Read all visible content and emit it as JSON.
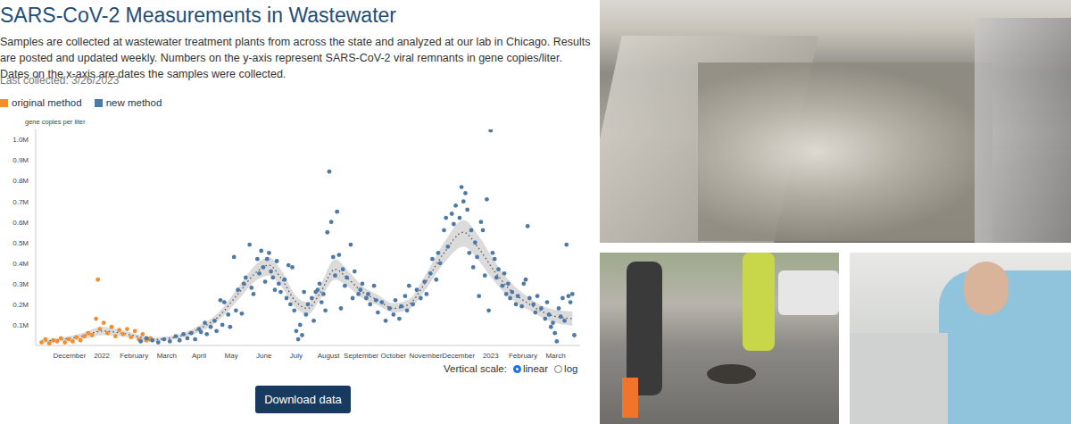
{
  "header": {
    "title": "SARS-CoV-2 Measurements in Wastewater",
    "description": "Samples are collected at wastewater treatment plants from across the state and analyzed at our lab in Chicago. Results are posted and updated weekly. Numbers on the y-axis represent SARS-CoV-2 viral remnants in gene copies/liter. Dates on the x-axis are dates the samples were collected.",
    "last_collected": "Last collected: 3/26/2023"
  },
  "controls": {
    "scale_label": "Vertical scale:",
    "scale_options": [
      "linear",
      "log"
    ],
    "selected": "linear",
    "button": "Download data"
  },
  "chart_data": {
    "type": "scatter",
    "y_label": "gene copies per liter",
    "grid": false,
    "legend": "top left",
    "xlim": [
      2021.83,
      2023.23
    ],
    "xticks": [
      {
        "value": 2021.917,
        "label": "December"
      },
      2022,
      {
        "value": 2022.083,
        "label": "February"
      },
      {
        "value": 2022.167,
        "label": "March"
      },
      {
        "value": 2022.25,
        "label": "April"
      },
      {
        "value": 2022.333,
        "label": "May"
      },
      {
        "value": 2022.417,
        "label": "June"
      },
      {
        "value": 2022.5,
        "label": "July"
      },
      {
        "value": 2022.583,
        "label": "August"
      },
      {
        "value": 2022.667,
        "label": "September"
      },
      {
        "value": 2022.75,
        "label": "October"
      },
      {
        "value": 2022.833,
        "label": "November"
      },
      {
        "value": 2022.917,
        "label": "December"
      },
      2023,
      {
        "value": 2023.083,
        "label": "February"
      },
      {
        "value": 2023.167,
        "label": "March"
      }
    ],
    "ylim": [
      0,
      1050000
    ],
    "yticks": [
      {
        "value": 100000,
        "label": "0.1M"
      },
      {
        "value": 200000,
        "label": "0.2M"
      },
      {
        "value": 300000,
        "label": "0.3M"
      },
      {
        "value": 400000,
        "label": "0.4M"
      },
      {
        "value": 500000,
        "label": "0.5M"
      },
      {
        "value": 600000,
        "label": "0.6M"
      },
      {
        "value": 700000,
        "label": "0.7M"
      },
      {
        "value": 800000,
        "label": "0.8M"
      },
      {
        "value": 900000,
        "label": "0.9M"
      },
      {
        "value": 1000000,
        "label": "1.0M"
      }
    ],
    "series": [
      {
        "type": "line",
        "line_style": "dotted",
        "color": "#555555",
        "x": [
          2021.845,
          2021.9,
          2021.95,
          2022.0,
          2022.05,
          2022.1,
          2022.125
        ],
        "values": [
          20000,
          30000,
          45000,
          70000,
          60000,
          40000,
          30000
        ],
        "lower": [
          10000,
          20000,
          30000,
          50000,
          45000,
          30000,
          20000
        ],
        "upper": [
          30000,
          40000,
          60000,
          90000,
          75000,
          50000,
          40000
        ]
      },
      {
        "type": "line",
        "line_style": "dotted",
        "color": "#555555",
        "x": [
          2022.1,
          2022.15,
          2022.2,
          2022.25,
          2022.3,
          2022.35,
          2022.4,
          2022.43,
          2022.46,
          2022.5,
          2022.53,
          2022.56,
          2022.6,
          2022.63,
          2022.67,
          2022.71,
          2022.75,
          2022.79,
          2022.83,
          2022.88,
          2022.93,
          2022.97,
          2023.01,
          2023.05,
          2023.1,
          2023.15,
          2023.21
        ],
        "values": [
          25000,
          30000,
          45000,
          80000,
          140000,
          250000,
          360000,
          390000,
          330000,
          210000,
          180000,
          250000,
          370000,
          330000,
          260000,
          220000,
          180000,
          200000,
          300000,
          450000,
          550000,
          470000,
          360000,
          270000,
          200000,
          150000,
          130000
        ],
        "lower": [
          15000,
          20000,
          35000,
          65000,
          120000,
          220000,
          320000,
          340000,
          290000,
          180000,
          150000,
          220000,
          320000,
          290000,
          230000,
          195000,
          160000,
          175000,
          265000,
          400000,
          480000,
          410000,
          310000,
          230000,
          170000,
          120000,
          95000
        ],
        "upper": [
          35000,
          40000,
          55000,
          95000,
          160000,
          280000,
          400000,
          430000,
          370000,
          240000,
          210000,
          285000,
          420000,
          370000,
          290000,
          245000,
          205000,
          225000,
          335000,
          500000,
          610000,
          530000,
          410000,
          310000,
          230000,
          180000,
          165000
        ]
      },
      {
        "name": "original method",
        "type": "scatter",
        "marker": "square",
        "color": "#f28e2b",
        "x": [
          2021.845,
          2021.855,
          2021.865,
          2021.875,
          2021.885,
          2021.895,
          2021.905,
          2021.915,
          2021.925,
          2021.935,
          2021.945,
          2021.955,
          2021.965,
          2021.975,
          2021.985,
          2021.99,
          2021.995,
          2022.005,
          2022.015,
          2022.025,
          2022.035,
          2022.045,
          2022.055,
          2022.065,
          2022.075,
          2022.085,
          2022.095,
          2022.105,
          2022.115,
          2022.125
        ],
        "values": [
          15000,
          30000,
          10000,
          25000,
          20000,
          35000,
          15000,
          30000,
          20000,
          40000,
          25000,
          45000,
          60000,
          50000,
          130000,
          320000,
          80000,
          110000,
          60000,
          90000,
          45000,
          75000,
          55000,
          80000,
          40000,
          70000,
          30000,
          55000,
          25000,
          35000
        ]
      },
      {
        "name": "new method",
        "type": "scatter",
        "marker": "square",
        "color": "#4e79a7",
        "x": [
          2022.1,
          2022.115,
          2022.13,
          2022.145,
          2022.16,
          2022.175,
          2022.19,
          2022.2,
          2022.21,
          2022.22,
          2022.23,
          2022.24,
          2022.25,
          2022.255,
          2022.265,
          2022.27,
          2022.28,
          2022.29,
          2022.295,
          2022.305,
          2022.31,
          2022.315,
          2022.325,
          2022.33,
          2022.34,
          2022.345,
          2022.35,
          2022.36,
          2022.365,
          2022.37,
          2022.38,
          2022.385,
          2022.39,
          2022.4,
          2022.405,
          2022.41,
          2022.415,
          2022.42,
          2022.425,
          2022.43,
          2022.435,
          2022.44,
          2022.445,
          2022.45,
          2022.455,
          2022.46,
          2022.47,
          2022.475,
          2022.48,
          2022.485,
          2022.49,
          2022.495,
          2022.5,
          2022.505,
          2022.51,
          2022.515,
          2022.52,
          2022.525,
          2022.53,
          2022.54,
          2022.545,
          2022.55,
          2022.555,
          2022.56,
          2022.565,
          2022.57,
          2022.575,
          2022.58,
          2022.585,
          2022.59,
          2022.595,
          2022.6,
          2022.605,
          2022.61,
          2022.615,
          2022.62,
          2022.625,
          2022.63,
          2022.64,
          2022.645,
          2022.65,
          2022.66,
          2022.665,
          2022.67,
          2022.68,
          2022.685,
          2022.69,
          2022.7,
          2022.705,
          2022.71,
          2022.72,
          2022.73,
          2022.74,
          2022.75,
          2022.755,
          2022.765,
          2022.77,
          2022.78,
          2022.785,
          2022.79,
          2022.8,
          2022.81,
          2022.82,
          2022.83,
          2022.835,
          2022.845,
          2022.85,
          2022.86,
          2022.865,
          2022.87,
          2022.88,
          2022.885,
          2022.89,
          2022.9,
          2022.905,
          2022.91,
          2022.92,
          2022.925,
          2022.93,
          2022.935,
          2022.94,
          2022.945,
          2022.95,
          2022.955,
          2022.96,
          2022.965,
          2022.97,
          2022.975,
          2022.98,
          2022.985,
          2022.99,
          2022.995,
          2023.0,
          2023.005,
          2023.01,
          2023.015,
          2023.02,
          2023.03,
          2023.035,
          2023.04,
          2023.045,
          2023.05,
          2023.055,
          2023.065,
          2023.07,
          2023.08,
          2023.085,
          2023.09,
          2023.095,
          2023.1,
          2023.11,
          2023.115,
          2023.12,
          2023.13,
          2023.14,
          2023.145,
          2023.15,
          2023.155,
          2023.16,
          2023.165,
          2023.17,
          2023.175,
          2023.18,
          2023.185,
          2023.19,
          2023.195,
          2023.2,
          2023.205,
          2023.21,
          2023.215
        ],
        "values": [
          20000,
          35000,
          25000,
          15000,
          30000,
          20000,
          45000,
          25000,
          55000,
          35000,
          60000,
          30000,
          80000,
          65000,
          110000,
          55000,
          90000,
          120000,
          70000,
          220000,
          100000,
          210000,
          150000,
          90000,
          430000,
          170000,
          270000,
          155000,
          300000,
          330000,
          490000,
          280000,
          250000,
          420000,
          350000,
          460000,
          380000,
          310000,
          420000,
          450000,
          360000,
          330000,
          270000,
          410000,
          300000,
          260000,
          320000,
          230000,
          390000,
          200000,
          380000,
          170000,
          70000,
          30000,
          100000,
          50000,
          260000,
          150000,
          200000,
          230000,
          120000,
          260000,
          270000,
          300000,
          210000,
          250000,
          170000,
          550000,
          845000,
          600000,
          430000,
          340000,
          650000,
          440000,
          180000,
          370000,
          290000,
          330000,
          490000,
          230000,
          360000,
          250000,
          270000,
          300000,
          230000,
          250000,
          200000,
          290000,
          220000,
          160000,
          210000,
          120000,
          180000,
          150000,
          220000,
          130000,
          190000,
          240000,
          170000,
          290000,
          200000,
          270000,
          230000,
          310000,
          250000,
          350000,
          420000,
          320000,
          450000,
          400000,
          560000,
          620000,
          480000,
          640000,
          590000,
          680000,
          620000,
          770000,
          700000,
          740000,
          660000,
          450000,
          560000,
          380000,
          500000,
          430000,
          240000,
          600000,
          560000,
          340000,
          710000,
          170000,
          1045000,
          450000,
          420000,
          330000,
          370000,
          290000,
          350000,
          250000,
          300000,
          230000,
          260000,
          200000,
          240000,
          190000,
          300000,
          320000,
          580000,
          230000,
          200000,
          160000,
          240000,
          180000,
          130000,
          210000,
          150000,
          90000,
          110000,
          60000,
          20000,
          180000,
          140000,
          230000,
          120000,
          490000,
          240000,
          210000,
          250000,
          50000
        ]
      }
    ]
  }
}
